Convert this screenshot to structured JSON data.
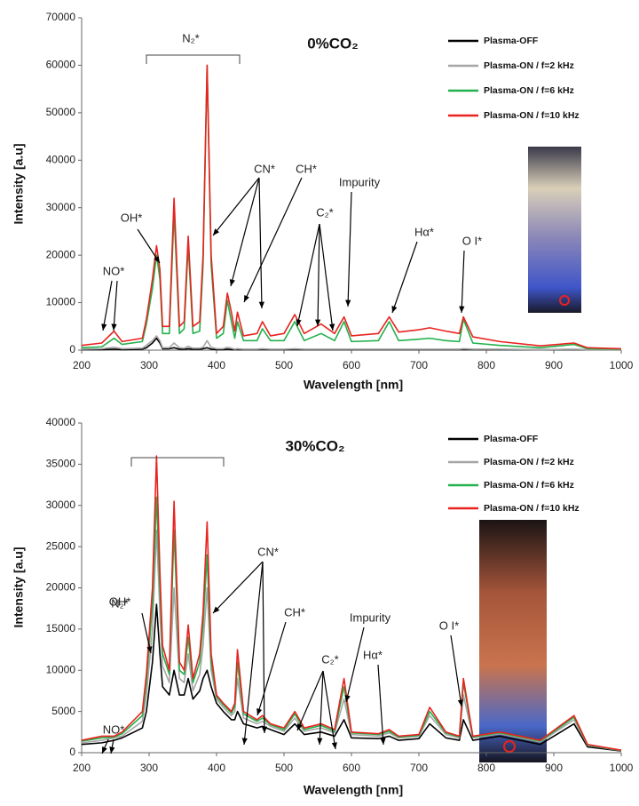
{
  "chart_data": [
    {
      "type": "line",
      "title": "0%CO₂",
      "x_label": "Wavelength [nm]",
      "y_label": "Intensity [a.u]",
      "xlim": [
        200,
        1000
      ],
      "xticks": [
        200,
        300,
        400,
        500,
        600,
        700,
        800,
        900,
        1000
      ],
      "ylim": [
        0,
        70000
      ],
      "yticks": [
        0,
        10000,
        20000,
        30000,
        40000,
        50000,
        60000,
        70000
      ],
      "annotations": [
        "N₂*",
        "OH*",
        "NO*",
        "CN*",
        "CH*",
        "C₂*",
        "Impurity",
        "Hα*",
        "O I*"
      ],
      "x": [
        200,
        230,
        248,
        260,
        290,
        296,
        305,
        311,
        316,
        320,
        330,
        337,
        345,
        352,
        358,
        365,
        375,
        380,
        386,
        392,
        400,
        410,
        416,
        422,
        427,
        431,
        440,
        460,
        468,
        480,
        500,
        516,
        530,
        555,
        575,
        589,
        600,
        640,
        656,
        670,
        700,
        716,
        740,
        760,
        766,
        780,
        820,
        880,
        930,
        950,
        1000
      ],
      "series": [
        {
          "name": "Plasma-OFF",
          "color": "#000000",
          "values": [
            100,
            100,
            200,
            100,
            200,
            500,
            1500,
            2500,
            1500,
            300,
            300,
            500,
            200,
            200,
            300,
            200,
            200,
            300,
            500,
            200,
            100,
            100,
            200,
            100,
            100,
            100,
            100,
            100,
            100,
            100,
            100,
            100,
            100,
            100,
            100,
            100,
            100,
            100,
            100,
            100,
            100,
            100,
            100,
            100,
            100,
            100,
            100,
            100,
            100,
            100,
            100
          ]
        },
        {
          "name": "Plasma-ON / f=2 kHz",
          "color": "#a6a6a6",
          "values": [
            200,
            300,
            600,
            300,
            400,
            1000,
            2000,
            3000,
            2000,
            500,
            500,
            1500,
            500,
            400,
            800,
            400,
            400,
            600,
            2000,
            600,
            300,
            300,
            600,
            400,
            200,
            300,
            200,
            200,
            300,
            200,
            200,
            300,
            200,
            200,
            200,
            200,
            200,
            200,
            200,
            200,
            200,
            200,
            200,
            200,
            300,
            200,
            200,
            100,
            200,
            100,
            100
          ]
        },
        {
          "name": "Plasma-ON / f=6 kHz",
          "color": "#22b14c",
          "values": [
            500,
            700,
            2500,
            1200,
            1800,
            5500,
            13000,
            20000,
            15000,
            3500,
            3500,
            29000,
            3500,
            4500,
            22000,
            3500,
            4000,
            18000,
            60000,
            18000,
            2500,
            3500,
            10500,
            6000,
            2500,
            6000,
            2000,
            2000,
            4500,
            2000,
            2000,
            6000,
            2000,
            3500,
            2000,
            6000,
            1800,
            2000,
            6000,
            2000,
            2300,
            2500,
            2000,
            1800,
            6500,
            1500,
            1000,
            500,
            1200,
            300,
            200
          ]
        },
        {
          "name": "Plasma-ON / f=10 kHz",
          "color": "#e8231f",
          "values": [
            1000,
            1500,
            4000,
            1800,
            2500,
            6500,
            15000,
            22000,
            17000,
            5000,
            5000,
            32000,
            5000,
            6000,
            24000,
            5000,
            6000,
            20000,
            60000,
            20000,
            3500,
            5000,
            12000,
            8000,
            4000,
            8000,
            3000,
            3500,
            6000,
            3000,
            3500,
            7500,
            3500,
            5500,
            3500,
            7000,
            3000,
            3500,
            7000,
            3800,
            4300,
            4700,
            4000,
            3500,
            7000,
            2800,
            1800,
            900,
            1500,
            500,
            300
          ]
        }
      ]
    },
    {
      "type": "line",
      "title": "30%CO₂",
      "x_label": "Wavelength [nm]",
      "y_label": "Intensity [a.u]",
      "xlim": [
        200,
        1000
      ],
      "xticks": [
        200,
        300,
        400,
        500,
        600,
        700,
        800,
        900,
        1000
      ],
      "ylim": [
        0,
        40000
      ],
      "yticks": [
        0,
        5000,
        10000,
        15000,
        20000,
        25000,
        30000,
        35000,
        40000
      ],
      "annotations": [
        "N₂*",
        "OH*",
        "NO*",
        "CN*",
        "CH*",
        "C₂*",
        "Impurity",
        "Hα*",
        "O I*"
      ],
      "x": [
        200,
        230,
        248,
        260,
        290,
        296,
        305,
        311,
        316,
        320,
        330,
        337,
        345,
        352,
        358,
        365,
        375,
        380,
        386,
        392,
        400,
        410,
        416,
        422,
        427,
        431,
        440,
        460,
        468,
        480,
        500,
        516,
        530,
        555,
        575,
        589,
        600,
        640,
        656,
        670,
        700,
        716,
        740,
        760,
        766,
        780,
        820,
        880,
        930,
        950,
        1000
      ],
      "series": [
        {
          "name": "Plasma-OFF",
          "color": "#000000",
          "values": [
            1000,
            1200,
            1500,
            1800,
            3000,
            5000,
            11000,
            18000,
            12000,
            8000,
            7000,
            10000,
            7000,
            7000,
            9000,
            6500,
            7500,
            9000,
            10000,
            8000,
            6000,
            5000,
            4500,
            4000,
            4000,
            5000,
            3500,
            3000,
            3200,
            2800,
            2200,
            3500,
            2200,
            2500,
            2000,
            4000,
            1800,
            1700,
            2000,
            1500,
            1700,
            3500,
            1800,
            1500,
            4000,
            1500,
            2000,
            1000,
            3500,
            700,
            200
          ]
        },
        {
          "name": "Plasma-ON / f=2 kHz",
          "color": "#a6a6a6",
          "values": [
            1200,
            1500,
            1800,
            2000,
            3800,
            7000,
            15000,
            27000,
            17000,
            10500,
            8500,
            20000,
            9000,
            8500,
            12000,
            7500,
            9500,
            13000,
            20000,
            10000,
            6500,
            5500,
            5000,
            4500,
            5000,
            9000,
            4200,
            3500,
            3800,
            3200,
            2600,
            4200,
            2600,
            3000,
            2400,
            6500,
            2200,
            2000,
            2400,
            1800,
            2000,
            4500,
            2200,
            1800,
            7000,
            1800,
            2300,
            1300,
            4000,
            900,
            250
          ]
        },
        {
          "name": "Plasma-ON / f=6 kHz",
          "color": "#22b14c",
          "values": [
            1400,
            1800,
            1900,
            2300,
            4500,
            8500,
            18000,
            31000,
            20000,
            12000,
            9500,
            27000,
            10000,
            9500,
            14000,
            8500,
            11000,
            15500,
            24000,
            11000,
            6800,
            5800,
            5300,
            4800,
            5600,
            11000,
            4700,
            3800,
            4200,
            3400,
            2800,
            4700,
            2800,
            3300,
            2600,
            8000,
            2400,
            2200,
            2600,
            1900,
            2100,
            5000,
            2400,
            1900,
            8500,
            1900,
            2400,
            1400,
            4300,
            950,
            280
          ]
        },
        {
          "name": "Plasma-ON / f=10 kHz",
          "color": "#e8231f",
          "values": [
            1500,
            2000,
            2000,
            2500,
            5000,
            9500,
            20000,
            36000,
            22000,
            13000,
            10000,
            30500,
            11000,
            10000,
            15500,
            9000,
            12000,
            17000,
            28000,
            12000,
            7000,
            6000,
            5500,
            5000,
            6000,
            12500,
            5000,
            4000,
            4500,
            3500,
            3000,
            5000,
            3000,
            3500,
            2800,
            9000,
            2500,
            2300,
            2800,
            2000,
            2200,
            5500,
            2500,
            2000,
            9000,
            2000,
            2500,
            1500,
            4500,
            1000,
            300
          ]
        }
      ]
    }
  ]
}
